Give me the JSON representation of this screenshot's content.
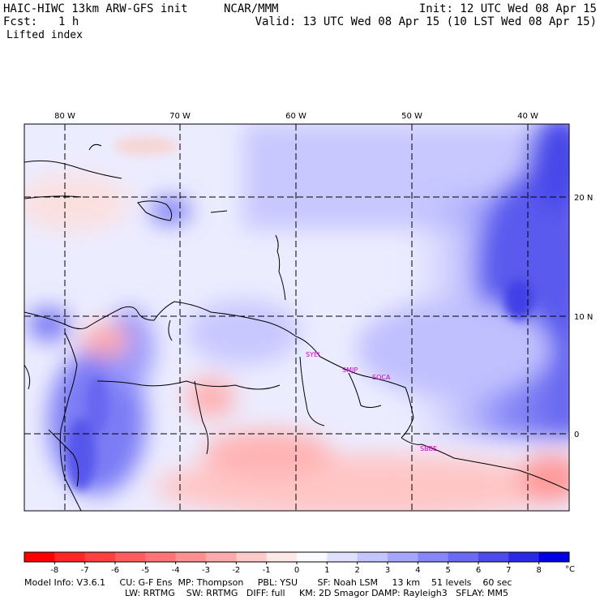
{
  "header": {
    "model": "HAIC-HIWC 13km ARW-GFS init",
    "org": "NCAR/MMM",
    "fcst_label": "Fcst:",
    "fcst_value": "1 h",
    "field": "Lifted index",
    "init": "Init: 12 UTC Wed 08 Apr 15",
    "valid": "Valid: 13 UTC Wed 08 Apr 15 (10 LST Wed 08 Apr 15)"
  },
  "map": {
    "lon_ticks": [
      "80 W",
      "70 W",
      "60 W",
      "50 W",
      "40 W"
    ],
    "lat_ticks": [
      "20 N",
      "10 N",
      "0"
    ],
    "sites": [
      "SYEI",
      "SMJP",
      "SOCA",
      "SBBE"
    ]
  },
  "colorbar": {
    "labels": [
      "-8",
      "-7",
      "-6",
      "-5",
      "-4",
      "-3",
      "-2",
      "-1",
      "0",
      "1",
      "2",
      "3",
      "4",
      "5",
      "6",
      "7",
      "8"
    ],
    "unit": "°C",
    "colors": [
      "#ff0000",
      "#ff2626",
      "#ff4040",
      "#ff5d5d",
      "#ff7575",
      "#ff9090",
      "#ffaaaa",
      "#ffcaca",
      "#ffe8e8",
      "#fbfbff",
      "#e0e0ff",
      "#c4c4ff",
      "#a6a6ff",
      "#8787fa",
      "#6a6af2",
      "#4b4bea",
      "#2a2ae5",
      "#0000e0"
    ]
  },
  "footer": {
    "line1": "Model Info: V3.6.1     CU: G-F Ens  MP: Thompson     PBL: YSU       SF: Noah LSM     13 km    51 levels    60 sec",
    "line2": "LW: RRTMG    SW: RRTMG   DIFF: full     KM: 2D Smagor DAMP: Rayleigh3   SFLAY: MM5"
  }
}
